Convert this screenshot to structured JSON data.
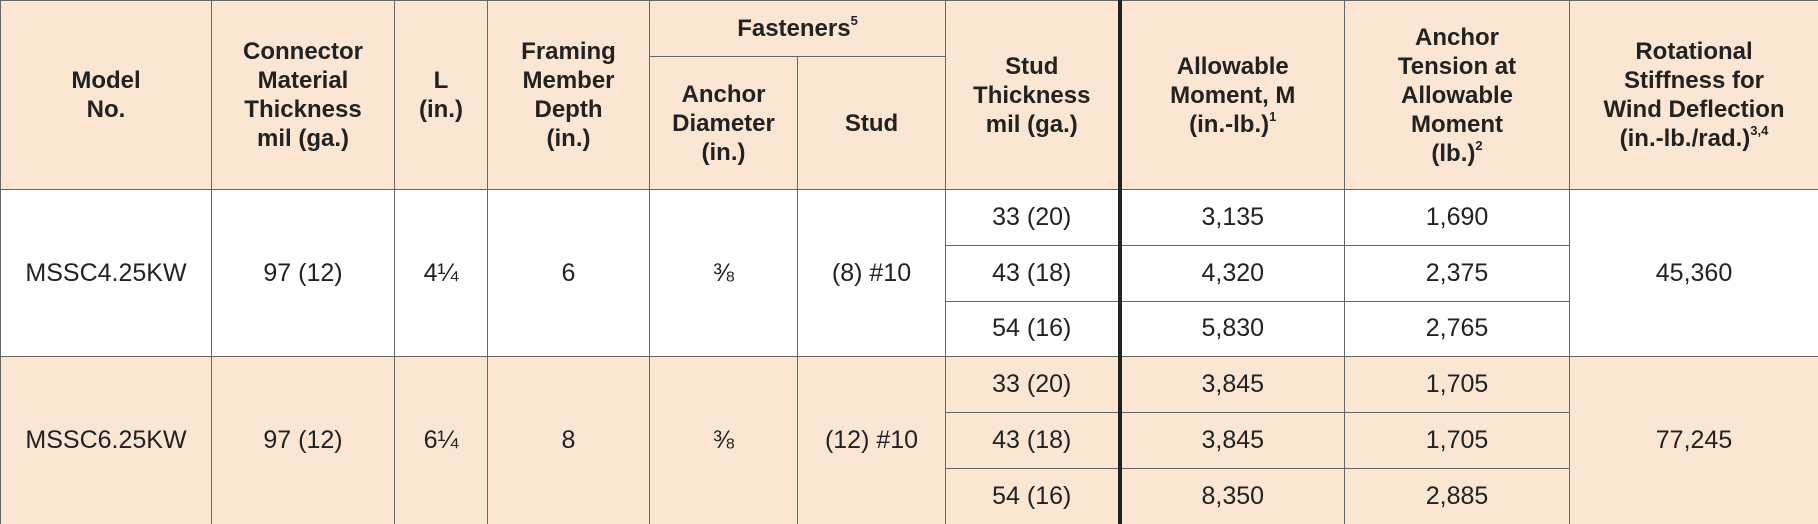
{
  "header": {
    "model": "Model\nNo.",
    "connector": "Connector\nMaterial\nThickness\nmil (ga.)",
    "l": "L\n(in.)",
    "framing": "Framing\nMember\nDepth\n(in.)",
    "fasteners": {
      "text": "Fasteners",
      "sup": "5"
    },
    "anchor_diameter": "Anchor\nDiameter\n(in.)",
    "stud": "Stud",
    "stud_thickness": "Stud\nThickness\nmil (ga.)",
    "allowable_moment": {
      "text": "Allowable\nMoment, M\n(in.-lb.)",
      "sup": "1"
    },
    "anchor_tension": {
      "text": "Anchor\nTension at\nAllowable\nMoment\n(lb.)",
      "sup": "2"
    },
    "rotational": {
      "text": "Rotational\nStiffness for\nWind Deflection\n(in.-lb./rad.)",
      "sup": "3,4"
    }
  },
  "groups": [
    {
      "model": "MSSC4.25KW",
      "connector": "97 (12)",
      "l": "4¼",
      "depth": "6",
      "anchor": "⅜",
      "stud": "(8) #10",
      "stiffness": "45,360",
      "rows": [
        {
          "thickness": "33 (20)",
          "moment": "3,135",
          "tension": "1,690"
        },
        {
          "thickness": "43 (18)",
          "moment": "4,320",
          "tension": "2,375"
        },
        {
          "thickness": "54 (16)",
          "moment": "5,830",
          "tension": "2,765"
        }
      ]
    },
    {
      "model": "MSSC6.25KW",
      "connector": "97 (12)",
      "l": "6¼",
      "depth": "8",
      "anchor": "⅜",
      "stud": "(12) #10",
      "stiffness": "77,245",
      "rows": [
        {
          "thickness": "33 (20)",
          "moment": "3,845",
          "tension": "1,705"
        },
        {
          "thickness": "43 (18)",
          "moment": "3,845",
          "tension": "1,705"
        },
        {
          "thickness": "54 (16)",
          "moment": "8,350",
          "tension": "2,885"
        }
      ]
    }
  ]
}
